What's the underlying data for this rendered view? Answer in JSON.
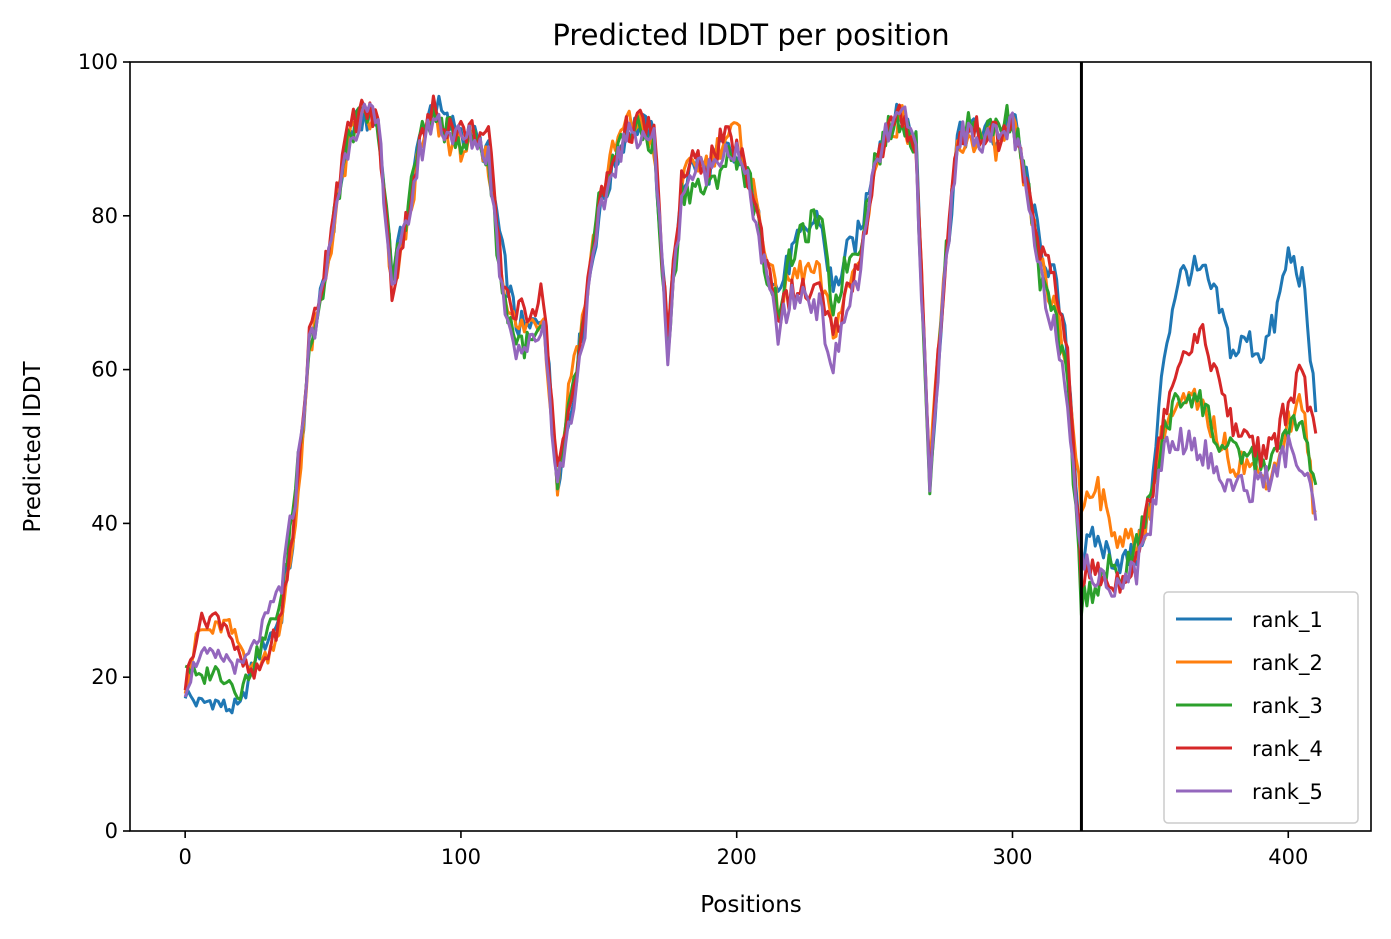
{
  "chart_data": {
    "type": "line",
    "title": "Predicted lDDT per position",
    "xlabel": "Positions",
    "ylabel": "Predicted lDDT",
    "xlim": [
      -20,
      430
    ],
    "ylim": [
      0,
      100
    ],
    "xticks": [
      0,
      100,
      200,
      300,
      400
    ],
    "yticks": [
      0,
      20,
      40,
      60,
      80,
      100
    ],
    "grid": false,
    "legend_position": "lower right",
    "vline_x": 325,
    "x_anchors": [
      0,
      5,
      10,
      15,
      20,
      25,
      30,
      35,
      40,
      45,
      50,
      55,
      60,
      65,
      70,
      75,
      80,
      85,
      90,
      95,
      100,
      105,
      110,
      115,
      120,
      125,
      130,
      135,
      140,
      145,
      150,
      155,
      160,
      165,
      170,
      175,
      180,
      185,
      190,
      195,
      200,
      205,
      210,
      215,
      220,
      225,
      230,
      235,
      240,
      245,
      250,
      255,
      260,
      265,
      270,
      275,
      280,
      285,
      290,
      295,
      300,
      305,
      310,
      315,
      320,
      325,
      330,
      335,
      340,
      345,
      350,
      355,
      360,
      365,
      370,
      375,
      380,
      385,
      390,
      395,
      400,
      405,
      410
    ],
    "series": [
      {
        "name": "rank_1",
        "color": "#1f77b4",
        "values": [
          18,
          16.5,
          17,
          16,
          16,
          22,
          25,
          28,
          40,
          63,
          70,
          82,
          91,
          93,
          92,
          73,
          79,
          90,
          95,
          92,
          91,
          90,
          88,
          75,
          66,
          65,
          68,
          46,
          55,
          68,
          80,
          86,
          91,
          92,
          90,
          64,
          84,
          87,
          86,
          89,
          87,
          85,
          75,
          70,
          75,
          78,
          80,
          70,
          75,
          78,
          88,
          92,
          93,
          90,
          46,
          70,
          90,
          91,
          91,
          90,
          93,
          85,
          76,
          72,
          62,
          36,
          38,
          36,
          35,
          36,
          42,
          62,
          72,
          73,
          72,
          68,
          62,
          64,
          62,
          66,
          75,
          72,
          55
        ]
      },
      {
        "name": "rank_2",
        "color": "#ff7f0e",
        "values": [
          19,
          26,
          26,
          27,
          24,
          21,
          23,
          27,
          40,
          62,
          70,
          81,
          90,
          93,
          91,
          70,
          78,
          88,
          93,
          90,
          89,
          89,
          87,
          72,
          65,
          66,
          67,
          45,
          60,
          68,
          82,
          88,
          92,
          92,
          89,
          63,
          84,
          87,
          87,
          90,
          91,
          85,
          77,
          68,
          72,
          73,
          72,
          65,
          70,
          75,
          86,
          91,
          93,
          89,
          46,
          71,
          89,
          90,
          90,
          89,
          92,
          83,
          74,
          68,
          60,
          42,
          46,
          40,
          38,
          37,
          42,
          53,
          55,
          56,
          54,
          51,
          48,
          48,
          46,
          47,
          53,
          56,
          40
        ]
      },
      {
        "name": "rank_3",
        "color": "#2ca02c",
        "values": [
          22,
          19.5,
          21,
          20,
          18,
          22,
          26,
          30,
          45,
          63,
          70,
          82,
          91,
          93,
          92,
          72,
          80,
          90,
          93,
          91,
          90,
          90,
          87,
          70,
          64,
          63,
          65,
          45,
          56,
          67,
          81,
          87,
          91,
          91,
          89,
          62,
          83,
          84,
          83,
          87,
          88,
          84,
          74,
          68,
          75,
          78,
          80,
          68,
          74,
          77,
          87,
          91,
          93,
          89,
          45,
          71,
          90,
          92,
          91,
          92,
          93,
          85,
          72,
          67,
          58,
          30,
          32,
          34,
          33,
          37,
          43,
          52,
          56,
          57,
          55,
          50,
          49,
          49,
          48,
          48,
          53,
          52,
          45
        ]
      },
      {
        "name": "rank_4",
        "color": "#d62728",
        "values": [
          19,
          27,
          28,
          27,
          22,
          20,
          23,
          28,
          42,
          64,
          72,
          84,
          92,
          94,
          92,
          70,
          79,
          89,
          94,
          92,
          91,
          91,
          90,
          72,
          67,
          68,
          70,
          46,
          56,
          68,
          81,
          87,
          91,
          92,
          91,
          64,
          85,
          87,
          87,
          90,
          89,
          84,
          76,
          67,
          70,
          70,
          70,
          64,
          70,
          75,
          86,
          91,
          93,
          89,
          47,
          71,
          90,
          91,
          91,
          90,
          92,
          84,
          76,
          71,
          63,
          33,
          34,
          32,
          33,
          36,
          43,
          55,
          61,
          64,
          64,
          58,
          52,
          52,
          49,
          50,
          56,
          60,
          50
        ]
      },
      {
        "name": "rank_5",
        "color": "#9467bd",
        "values": [
          18.5,
          23,
          22.5,
          22.5,
          21,
          24,
          28,
          32,
          44,
          63,
          70,
          82,
          91,
          93,
          92,
          71,
          78,
          88,
          93,
          91,
          90,
          90,
          88,
          70,
          63,
          63,
          66,
          45,
          54,
          66,
          79,
          86,
          90,
          91,
          90,
          62,
          83,
          86,
          86,
          89,
          88,
          83,
          73,
          65,
          69,
          70,
          68,
          60,
          68,
          73,
          86,
          91,
          93,
          89,
          44,
          70,
          90,
          91,
          90,
          90,
          92,
          83,
          72,
          66,
          57,
          35,
          33,
          32,
          33,
          34,
          40,
          50,
          51,
          51,
          49,
          46,
          45,
          44,
          46,
          46,
          50,
          47,
          41
        ]
      }
    ]
  }
}
